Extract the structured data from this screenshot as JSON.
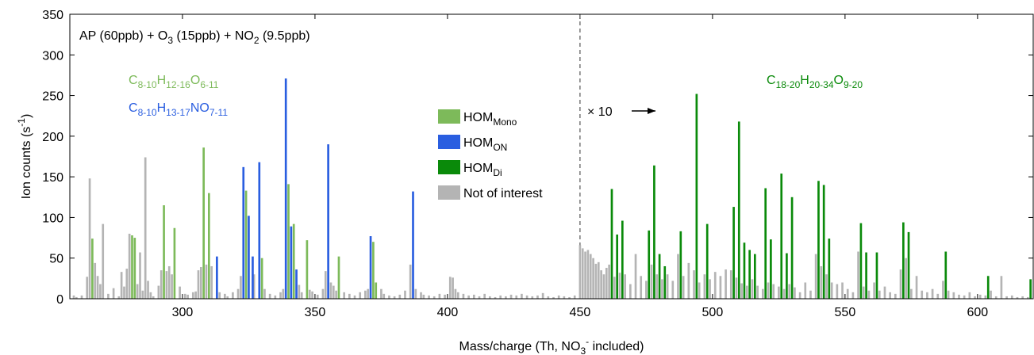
{
  "chart_data": {
    "type": "bar",
    "title": [
      {
        "text": "AP (60ppb) + O"
      },
      {
        "text": "3",
        "script": "sub"
      },
      {
        "text": " (15ppb) + NO"
      },
      {
        "text": "2",
        "script": "sub"
      },
      {
        "text": " (9.5ppb)"
      }
    ],
    "x_label": [
      {
        "text": "Mass/charge (Th, NO"
      },
      {
        "text": "3",
        "script": "sub"
      },
      {
        "text": "-",
        "script": "sup"
      },
      {
        "text": " included)"
      }
    ],
    "y_label": [
      {
        "text": "Ion counts (s"
      },
      {
        "text": "-1",
        "script": "sup"
      },
      {
        "text": ")"
      }
    ],
    "xlim": [
      257.5,
      621
    ],
    "ylim": [
      0,
      350
    ],
    "xticks": [
      300,
      350,
      400,
      450,
      500,
      550,
      600
    ],
    "yticks": [
      0,
      50,
      100,
      150,
      200,
      250,
      300,
      350
    ],
    "divider_x": 450,
    "legend": "center",
    "annotations": [
      {
        "text": [
          {
            "text": "C"
          },
          {
            "text": "8-10",
            "script": "sub"
          },
          {
            "text": "H"
          },
          {
            "text": "12-16",
            "script": "sub"
          },
          {
            "text": "O"
          },
          {
            "text": "6-11",
            "script": "sub"
          }
        ],
        "color": "#7dba5a"
      },
      {
        "text": [
          {
            "text": "C"
          },
          {
            "text": "8-10",
            "script": "sub"
          },
          {
            "text": "H"
          },
          {
            "text": "13-17",
            "script": "sub"
          },
          {
            "text": "NO"
          },
          {
            "text": "7-11",
            "script": "sub"
          }
        ],
        "color": "#2a5ee0"
      },
      {
        "text": [
          {
            "text": "C"
          },
          {
            "text": "18-20",
            "script": "sub"
          },
          {
            "text": "H"
          },
          {
            "text": "20-34",
            "script": "sub"
          },
          {
            "text": "O"
          },
          {
            "text": "9-20",
            "script": "sub"
          }
        ],
        "color": "#0a8a0a"
      },
      {
        "text": [
          {
            "text": "× 10"
          }
        ],
        "color": "#000000"
      }
    ],
    "series": [
      {
        "name": [
          {
            "text": "HOM"
          },
          {
            "text": "Mono",
            "script": "sub"
          }
        ],
        "color": "#7dba5a",
        "x": [
          266,
          281,
          282,
          293,
          297,
          308,
          310,
          324,
          330,
          340,
          342,
          347,
          359,
          372,
          373
        ],
        "values": [
          74,
          78,
          75,
          115,
          87,
          186,
          130,
          133,
          50,
          141,
          92,
          72,
          52,
          70,
          20
        ]
      },
      {
        "name": [
          {
            "text": "HOM"
          },
          {
            "text": "ON",
            "script": "sub"
          }
        ],
        "color": "#2a5ee0",
        "x": [
          313,
          323,
          325,
          326.5,
          329,
          339,
          341,
          343,
          355,
          371,
          387
        ],
        "values": [
          52,
          162,
          102,
          52,
          168,
          271,
          89,
          36,
          190,
          77,
          132
        ]
      },
      {
        "name": [
          {
            "text": "HOM"
          },
          {
            "text": "Di",
            "script": "sub"
          }
        ],
        "color": "#0a8a0a",
        "x": [
          462,
          464,
          466,
          476,
          478,
          480,
          482,
          488,
          494,
          498,
          508,
          510,
          512,
          514,
          516,
          520,
          522,
          526,
          528,
          530,
          540,
          542,
          544,
          556,
          558,
          562,
          572,
          574,
          588,
          604,
          620
        ],
        "values": [
          135,
          79,
          96,
          84,
          164,
          55,
          40,
          83,
          252,
          92,
          113,
          218,
          69,
          60,
          55,
          136,
          73,
          154,
          56,
          125,
          145,
          140,
          74,
          93,
          57,
          57,
          94,
          82,
          58,
          28,
          24
        ]
      },
      {
        "name": [
          {
            "text": "Not of interest"
          }
        ],
        "color": "#b4b4b4",
        "x": [
          259,
          260,
          262,
          264,
          265,
          267,
          268,
          269,
          270,
          272,
          274,
          276,
          277,
          278,
          279,
          280,
          283,
          284,
          285,
          286,
          287,
          288,
          289,
          291,
          292,
          294,
          295,
          296,
          299,
          301,
          302,
          304,
          305,
          306,
          307,
          309,
          311,
          314,
          316,
          317,
          319,
          321,
          322,
          327,
          331,
          333,
          335,
          337,
          338,
          344,
          345,
          348,
          349,
          351,
          353,
          354,
          356,
          357,
          358,
          361,
          363,
          365,
          367,
          369,
          370,
          375,
          376,
          378,
          380,
          382,
          384,
          386,
          388,
          390,
          391,
          393,
          395,
          397,
          399,
          401,
          402,
          403,
          404,
          406,
          408,
          410,
          412,
          414,
          416,
          418,
          420,
          422,
          424,
          426,
          428,
          430,
          432,
          434,
          436,
          438,
          440,
          442,
          444,
          446,
          448,
          450,
          451,
          452,
          453,
          454,
          455,
          456,
          457,
          458,
          459,
          460,
          461,
          463,
          465,
          467,
          469,
          471,
          473,
          475,
          477,
          479,
          481,
          483,
          485,
          487,
          489,
          491,
          493,
          495,
          497,
          499,
          501,
          503,
          505,
          507,
          509,
          511,
          513,
          515,
          517,
          519,
          521,
          523,
          525,
          527,
          529,
          531,
          533,
          535,
          537,
          539,
          541,
          543,
          545,
          547,
          549,
          551,
          553,
          555,
          557,
          559,
          561,
          563,
          565,
          567,
          569,
          571,
          573,
          575,
          577,
          579,
          581,
          583,
          585,
          587,
          589,
          591,
          593,
          595,
          597,
          599,
          601,
          603,
          605,
          607,
          609,
          611,
          613,
          615,
          617,
          619
        ],
        "values": [
          4,
          2,
          4,
          27,
          148,
          44,
          28,
          18,
          92,
          6,
          13,
          3,
          33,
          15,
          37,
          80,
          18,
          57,
          10,
          174,
          22,
          8,
          3,
          16,
          35,
          34,
          40,
          30,
          15,
          6,
          5,
          8,
          9,
          35,
          39,
          42,
          40,
          8,
          6,
          3,
          8,
          12,
          28,
          30,
          12,
          6,
          4,
          8,
          12,
          17,
          8,
          11,
          9,
          5,
          12,
          34,
          20,
          16,
          10,
          8,
          6,
          4,
          8,
          10,
          12,
          12,
          6,
          4,
          3,
          5,
          10,
          42,
          12,
          8,
          5,
          4,
          3,
          6,
          5,
          27,
          26,
          12,
          8,
          6,
          4,
          5,
          3,
          6,
          3,
          2,
          4,
          3,
          5,
          4,
          6,
          4,
          3,
          4,
          7,
          3,
          2,
          4,
          3,
          2,
          4,
          66,
          62,
          58,
          60,
          55,
          50,
          43,
          45,
          35,
          30,
          38,
          42,
          27,
          32,
          30,
          18,
          55,
          28,
          22,
          42,
          30,
          24,
          30,
          22,
          55,
          28,
          44,
          35,
          20,
          30,
          24,
          33,
          28,
          36,
          35,
          26,
          19,
          16,
          24,
          16,
          12,
          20,
          18,
          15,
          12,
          18,
          14,
          8,
          20,
          10,
          55,
          40,
          30,
          20,
          18,
          20,
          12,
          8,
          58,
          15,
          10,
          20,
          10,
          15,
          8,
          6,
          36,
          50,
          12,
          28,
          10,
          8,
          12,
          6,
          22,
          10,
          8,
          5,
          4,
          8,
          3,
          5,
          4,
          10,
          3,
          28,
          3,
          4,
          2,
          3,
          2
        ]
      }
    ]
  }
}
